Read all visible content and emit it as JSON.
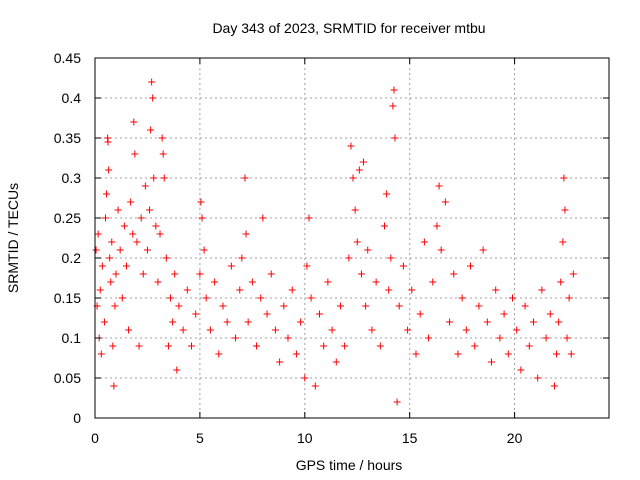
{
  "chart_data": {
    "type": "scatter",
    "title": "Day 343 of 2023, SRMTID for receiver mtbu",
    "xlabel": "GPS time / hours",
    "ylabel": "SRMTID / TECUs",
    "xlim": [
      0,
      24.5
    ],
    "ylim": [
      0,
      0.45
    ],
    "x_ticks": [
      0,
      5,
      10,
      15,
      20
    ],
    "x_tick_labels": [
      "0",
      "5",
      "10",
      "15",
      "20"
    ],
    "y_ticks": [
      0,
      0.05,
      0.1,
      0.15,
      0.2,
      0.25,
      0.3,
      0.35,
      0.4,
      0.45
    ],
    "y_tick_labels": [
      "0",
      "0.05",
      "0.1",
      "0.15",
      "0.2",
      "0.25",
      "0.3",
      "0.35",
      "0.4",
      "0.45"
    ],
    "grid": true,
    "marker": "+",
    "marker_color": "#ff0000",
    "series": [
      {
        "name": "SRMTID",
        "points": [
          [
            0.05,
            0.21
          ],
          [
            0.1,
            0.14
          ],
          [
            0.15,
            0.23
          ],
          [
            0.2,
            0.1
          ],
          [
            0.25,
            0.16
          ],
          [
            0.3,
            0.08
          ],
          [
            0.35,
            0.19
          ],
          [
            0.45,
            0.12
          ],
          [
            0.5,
            0.25
          ],
          [
            0.55,
            0.28
          ],
          [
            0.6,
            0.35
          ],
          [
            0.62,
            0.345
          ],
          [
            0.65,
            0.31
          ],
          [
            0.7,
            0.2
          ],
          [
            0.75,
            0.17
          ],
          [
            0.8,
            0.22
          ],
          [
            0.85,
            0.09
          ],
          [
            0.9,
            0.04
          ],
          [
            0.95,
            0.14
          ],
          [
            1.0,
            0.18
          ],
          [
            1.1,
            0.26
          ],
          [
            1.2,
            0.21
          ],
          [
            1.3,
            0.15
          ],
          [
            1.4,
            0.24
          ],
          [
            1.5,
            0.19
          ],
          [
            1.6,
            0.11
          ],
          [
            1.7,
            0.27
          ],
          [
            1.8,
            0.23
          ],
          [
            1.85,
            0.37
          ],
          [
            1.9,
            0.33
          ],
          [
            2.0,
            0.22
          ],
          [
            2.1,
            0.09
          ],
          [
            2.2,
            0.25
          ],
          [
            2.3,
            0.18
          ],
          [
            2.4,
            0.29
          ],
          [
            2.5,
            0.21
          ],
          [
            2.6,
            0.26
          ],
          [
            2.65,
            0.36
          ],
          [
            2.7,
            0.42
          ],
          [
            2.75,
            0.4
          ],
          [
            2.8,
            0.3
          ],
          [
            2.9,
            0.24
          ],
          [
            3.0,
            0.17
          ],
          [
            3.1,
            0.23
          ],
          [
            3.2,
            0.35
          ],
          [
            3.25,
            0.33
          ],
          [
            3.3,
            0.3
          ],
          [
            3.4,
            0.2
          ],
          [
            3.5,
            0.09
          ],
          [
            3.6,
            0.15
          ],
          [
            3.7,
            0.12
          ],
          [
            3.8,
            0.18
          ],
          [
            3.9,
            0.06
          ],
          [
            4.0,
            0.14
          ],
          [
            4.2,
            0.11
          ],
          [
            4.4,
            0.16
          ],
          [
            4.6,
            0.09
          ],
          [
            4.8,
            0.13
          ],
          [
            5.0,
            0.18
          ],
          [
            5.05,
            0.27
          ],
          [
            5.1,
            0.25
          ],
          [
            5.2,
            0.21
          ],
          [
            5.3,
            0.15
          ],
          [
            5.5,
            0.11
          ],
          [
            5.7,
            0.17
          ],
          [
            5.9,
            0.08
          ],
          [
            6.1,
            0.14
          ],
          [
            6.3,
            0.12
          ],
          [
            6.5,
            0.19
          ],
          [
            6.7,
            0.1
          ],
          [
            6.9,
            0.16
          ],
          [
            7.0,
            0.2
          ],
          [
            7.15,
            0.3
          ],
          [
            7.2,
            0.23
          ],
          [
            7.3,
            0.12
          ],
          [
            7.5,
            0.17
          ],
          [
            7.7,
            0.09
          ],
          [
            7.9,
            0.15
          ],
          [
            8.0,
            0.25
          ],
          [
            8.2,
            0.13
          ],
          [
            8.4,
            0.18
          ],
          [
            8.6,
            0.11
          ],
          [
            8.8,
            0.07
          ],
          [
            9.0,
            0.14
          ],
          [
            9.2,
            0.1
          ],
          [
            9.4,
            0.16
          ],
          [
            9.6,
            0.08
          ],
          [
            9.8,
            0.12
          ],
          [
            10.0,
            0.05
          ],
          [
            10.1,
            0.19
          ],
          [
            10.2,
            0.25
          ],
          [
            10.3,
            0.15
          ],
          [
            10.5,
            0.04
          ],
          [
            10.7,
            0.13
          ],
          [
            10.9,
            0.09
          ],
          [
            11.1,
            0.17
          ],
          [
            11.3,
            0.11
          ],
          [
            11.5,
            0.07
          ],
          [
            11.7,
            0.14
          ],
          [
            11.9,
            0.09
          ],
          [
            12.1,
            0.2
          ],
          [
            12.2,
            0.34
          ],
          [
            12.3,
            0.3
          ],
          [
            12.4,
            0.26
          ],
          [
            12.5,
            0.22
          ],
          [
            12.6,
            0.31
          ],
          [
            12.7,
            0.18
          ],
          [
            12.8,
            0.32
          ],
          [
            12.9,
            0.14
          ],
          [
            13.0,
            0.21
          ],
          [
            13.2,
            0.11
          ],
          [
            13.4,
            0.17
          ],
          [
            13.6,
            0.09
          ],
          [
            13.8,
            0.24
          ],
          [
            13.9,
            0.28
          ],
          [
            14.0,
            0.16
          ],
          [
            14.1,
            0.2
          ],
          [
            14.2,
            0.39
          ],
          [
            14.25,
            0.41
          ],
          [
            14.3,
            0.35
          ],
          [
            14.4,
            0.02
          ],
          [
            14.5,
            0.14
          ],
          [
            14.7,
            0.19
          ],
          [
            14.9,
            0.11
          ],
          [
            15.1,
            0.16
          ],
          [
            15.3,
            0.08
          ],
          [
            15.5,
            0.13
          ],
          [
            15.7,
            0.22
          ],
          [
            15.9,
            0.1
          ],
          [
            16.1,
            0.17
          ],
          [
            16.3,
            0.24
          ],
          [
            16.4,
            0.29
          ],
          [
            16.5,
            0.21
          ],
          [
            16.7,
            0.27
          ],
          [
            16.9,
            0.12
          ],
          [
            17.1,
            0.18
          ],
          [
            17.3,
            0.08
          ],
          [
            17.5,
            0.15
          ],
          [
            17.7,
            0.11
          ],
          [
            17.9,
            0.19
          ],
          [
            18.1,
            0.09
          ],
          [
            18.3,
            0.14
          ],
          [
            18.5,
            0.21
          ],
          [
            18.7,
            0.12
          ],
          [
            18.9,
            0.07
          ],
          [
            19.1,
            0.16
          ],
          [
            19.3,
            0.1
          ],
          [
            19.5,
            0.13
          ],
          [
            19.7,
            0.08
          ],
          [
            19.9,
            0.15
          ],
          [
            20.1,
            0.11
          ],
          [
            20.3,
            0.06
          ],
          [
            20.5,
            0.14
          ],
          [
            20.7,
            0.09
          ],
          [
            20.9,
            0.12
          ],
          [
            21.1,
            0.05
          ],
          [
            21.3,
            0.16
          ],
          [
            21.5,
            0.1
          ],
          [
            21.7,
            0.13
          ],
          [
            21.9,
            0.04
          ],
          [
            22.0,
            0.08
          ],
          [
            22.1,
            0.12
          ],
          [
            22.2,
            0.17
          ],
          [
            22.3,
            0.22
          ],
          [
            22.35,
            0.3
          ],
          [
            22.4,
            0.26
          ],
          [
            22.5,
            0.1
          ],
          [
            22.6,
            0.15
          ],
          [
            22.7,
            0.08
          ],
          [
            22.8,
            0.18
          ]
        ]
      }
    ]
  }
}
